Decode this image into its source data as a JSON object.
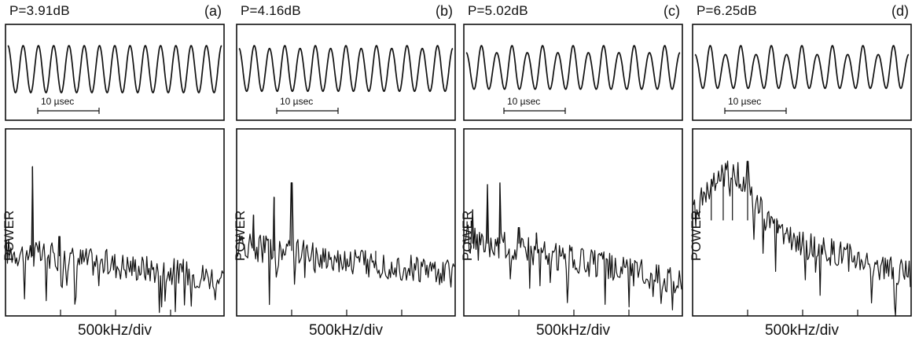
{
  "chart_data": [
    {
      "type": "line",
      "panel": "(a)",
      "power_label": "P=3.91dB",
      "time_scale_label": "10  µsec",
      "ylabel": "POWER",
      "xlabel": "500kHz/div",
      "waveform": {
        "cycles": 14,
        "period_doubling": 0.0
      },
      "spectrum_peaks": [
        {
          "x": 0.48,
          "height": 0.82
        },
        {
          "x": 0.98,
          "height": 0.43
        }
      ],
      "noise_floor": [
        0.35,
        0.2
      ]
    },
    {
      "type": "line",
      "panel": "(b)",
      "power_label": "P=4.16dB",
      "time_scale_label": "10  µsec",
      "ylabel": "POWER",
      "xlabel": "500kHz/div",
      "waveform": {
        "cycles": 14,
        "period_doubling": 0.12
      },
      "spectrum_peaks": [
        {
          "x": 0.3,
          "height": 0.55
        },
        {
          "x": 0.68,
          "height": 0.65
        },
        {
          "x": 1.0,
          "height": 0.73
        },
        {
          "x": 2.55,
          "height": 0.3
        }
      ],
      "noise_floor": [
        0.38,
        0.22
      ]
    },
    {
      "type": "line",
      "panel": "(c)",
      "power_label": "P=5.02dB",
      "time_scale_label": "10  µsec",
      "ylabel": "POWER",
      "xlabel": "500kHz/div",
      "waveform": {
        "cycles": 14,
        "period_doubling": 0.3
      },
      "spectrum_peaks": [
        {
          "x": 0.15,
          "height": 0.58
        },
        {
          "x": 0.42,
          "height": 0.72
        },
        {
          "x": 0.65,
          "height": 0.73
        },
        {
          "x": 1.0,
          "height": 0.48
        },
        {
          "x": 1.32,
          "height": 0.45
        }
      ],
      "noise_floor": [
        0.42,
        0.18
      ]
    },
    {
      "type": "line",
      "panel": "(d)",
      "power_label": "P=6.25dB",
      "time_scale_label": "10  µsec",
      "ylabel": "POWER",
      "xlabel": "500kHz/div",
      "waveform": {
        "cycles": 14,
        "period_doubling": 0.38
      },
      "spectrum_peaks": [
        {
          "x": 0.33,
          "height": 0.75
        },
        {
          "x": 0.55,
          "height": 0.78
        },
        {
          "x": 0.72,
          "height": 0.75
        },
        {
          "x": 1.0,
          "height": 0.85
        },
        {
          "x": 1.55,
          "height": 0.45
        }
      ],
      "broadband_hump": {
        "center": 0.75,
        "width": 0.55,
        "height": 0.3
      },
      "noise_floor": [
        0.55,
        0.22
      ]
    }
  ]
}
